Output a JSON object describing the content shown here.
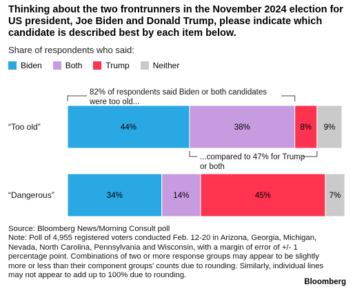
{
  "title": "Thinking about the two frontrunners in the November 2024 election for US president, Joe Biden and Donald Trump, please indicate which candidate is described best by each item below.",
  "subtitle": "Share of respondents who said:",
  "legend": [
    {
      "label": "Biden",
      "color": "#29a8e3"
    },
    {
      "label": "Both",
      "color": "#c79be0"
    },
    {
      "label": "Trump",
      "color": "#fe3350"
    },
    {
      "label": "Neither",
      "color": "#cacaca"
    }
  ],
  "chart_data": {
    "type": "bar",
    "orientation": "horizontal",
    "stacked": true,
    "categories": [
      "“Too old”",
      "“Dangerous”"
    ],
    "series": [
      {
        "name": "Biden",
        "values": [
          44,
          34
        ],
        "labels": [
          "44%",
          "34%"
        ]
      },
      {
        "name": "Both",
        "values": [
          38,
          14
        ],
        "labels": [
          "38%",
          "14%"
        ]
      },
      {
        "name": "Trump",
        "values": [
          8,
          45
        ],
        "labels": [
          "8%",
          "45%"
        ]
      },
      {
        "name": "Neither",
        "values": [
          9,
          7
        ],
        "labels": [
          "9%",
          "7%"
        ]
      }
    ],
    "annotations": [
      {
        "text": "82% of respondents said Biden or both candidates were too old...",
        "category": 0,
        "spans_series": [
          "Biden",
          "Both"
        ],
        "side": "above"
      },
      {
        "text": "...compared to 47% for Trump or both",
        "category": 0,
        "spans_series": [
          "Both",
          "Trump"
        ],
        "side": "below"
      }
    ],
    "xlim": [
      0,
      100
    ],
    "legend_position": "top-left"
  },
  "source": "Source: Bloomberg News/Morning Consult poll",
  "note": "Note: Poll of 4,955 registered voters conducted Feb. 12-20 in Arizona, Georgia, Michigan, Nevada, North Carolina, Pennsylvania and Wisconsin, with a margin of error of +/- 1 percentage point. Combinations of two or more response groups may appear to be slightly more or less than their component groups' counts due to rounding. Similarly, individual lines may not appear to add up to 100% due to rounding.",
  "brand": "Bloomberg"
}
